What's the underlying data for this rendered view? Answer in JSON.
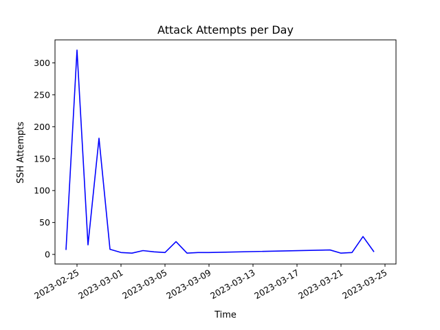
{
  "chart_data": {
    "type": "line",
    "title": "Attack Attempts per Day",
    "xlabel": "Time",
    "ylabel": "SSH Attempts",
    "x_ticks": [
      "2023-02-25",
      "2023-03-01",
      "2023-03-05",
      "2023-03-09",
      "2023-03-13",
      "2023-03-17",
      "2023-03-21",
      "2023-03-25"
    ],
    "y_ticks": [
      0,
      50,
      100,
      150,
      200,
      250,
      300
    ],
    "xlim": [
      "2023-02-23",
      "2023-03-26"
    ],
    "ylim": [
      -15,
      336
    ],
    "grid": false,
    "series": [
      {
        "color": "#0000ff",
        "points": [
          [
            "2023-02-24",
            7
          ],
          [
            "2023-02-25",
            320
          ],
          [
            "2023-02-26",
            15
          ],
          [
            "2023-02-27",
            182
          ],
          [
            "2023-02-28",
            8
          ],
          [
            "2023-03-01",
            3
          ],
          [
            "2023-03-02",
            2
          ],
          [
            "2023-03-03",
            6
          ],
          [
            "2023-03-04",
            4
          ],
          [
            "2023-03-05",
            3
          ],
          [
            "2023-03-06",
            20
          ],
          [
            "2023-03-07",
            2
          ],
          [
            "2023-03-08",
            3
          ],
          [
            "2023-03-09",
            3
          ],
          [
            "2023-03-20",
            7
          ],
          [
            "2023-03-21",
            2
          ],
          [
            "2023-03-22",
            3
          ],
          [
            "2023-03-23",
            28
          ],
          [
            "2023-03-24",
            4
          ]
        ]
      }
    ]
  }
}
